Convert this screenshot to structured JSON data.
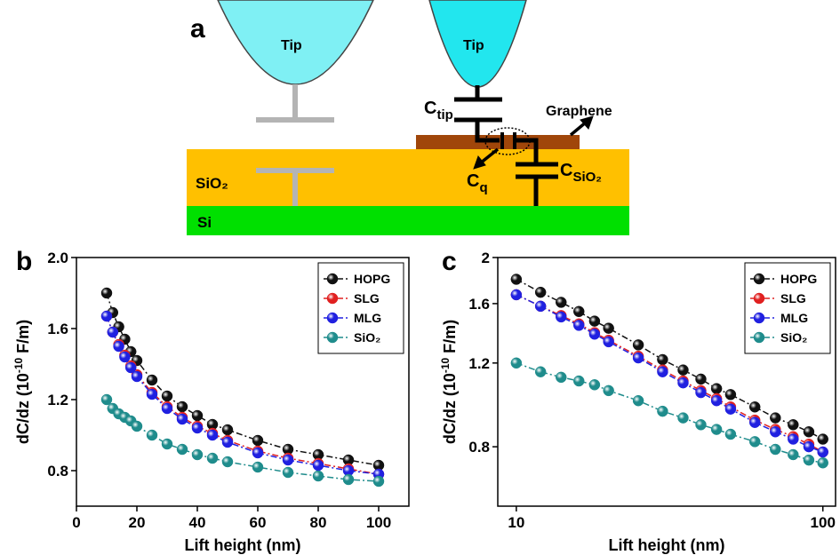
{
  "diagram": {
    "label": "a",
    "tip_left": "Tip",
    "tip_right": "Tip",
    "c_tip": {
      "main": "C",
      "sub": "tip"
    },
    "graphene": "Graphene",
    "c_q": {
      "main": "C",
      "sub": "q"
    },
    "c_sio2": {
      "main": "C",
      "sub": "SiO₂"
    },
    "sio2": "SiO₂",
    "si": "Si"
  },
  "chart_data": [
    {
      "type": "line",
      "label": "b",
      "xlabel": "Lift height (nm)",
      "ylabel": [
        "dC/dz (10",
        "-10",
        " F/m)"
      ],
      "x": [
        10,
        12,
        14,
        16,
        18,
        20,
        25,
        30,
        35,
        40,
        45,
        50,
        60,
        70,
        80,
        90,
        100
      ],
      "series": [
        {
          "name": "HOPG",
          "color": "#111111",
          "values": [
            1.8,
            1.69,
            1.61,
            1.54,
            1.47,
            1.42,
            1.31,
            1.22,
            1.16,
            1.11,
            1.06,
            1.03,
            0.97,
            0.92,
            0.89,
            0.86,
            0.83
          ]
        },
        {
          "name": "SLG",
          "color": "#e02020",
          "values": [
            1.67,
            1.58,
            1.51,
            1.45,
            1.39,
            1.34,
            1.24,
            1.16,
            1.1,
            1.05,
            1.01,
            0.97,
            0.91,
            0.87,
            0.84,
            0.81,
            0.78
          ]
        },
        {
          "name": "MLG",
          "color": "#2020e0",
          "values": [
            1.67,
            1.58,
            1.5,
            1.44,
            1.38,
            1.33,
            1.23,
            1.15,
            1.09,
            1.04,
            1.0,
            0.96,
            0.9,
            0.86,
            0.83,
            0.8,
            0.78
          ]
        },
        {
          "name": "SiO₂",
          "color": "#1f8c8c",
          "values": [
            1.2,
            1.15,
            1.12,
            1.1,
            1.08,
            1.05,
            1.0,
            0.95,
            0.92,
            0.89,
            0.87,
            0.85,
            0.82,
            0.79,
            0.77,
            0.75,
            0.74
          ]
        }
      ],
      "xlim": [
        0,
        110
      ],
      "ylim": [
        0.6,
        2.0
      ],
      "xscale": "linear",
      "yscale": "linear",
      "xticks": [
        0,
        20,
        40,
        60,
        80,
        100
      ],
      "yticks": [
        0.8,
        1.2,
        1.6,
        {
          "value": 2,
          "label": "2.0"
        }
      ],
      "legend": "upper right"
    },
    {
      "type": "line",
      "label": "c",
      "xlabel": "Lift height (nm)",
      "ylabel": [
        "dC/dz (10",
        "-10",
        " F/m)"
      ],
      "x": [
        10,
        12,
        14,
        16,
        18,
        20,
        25,
        30,
        35,
        40,
        45,
        50,
        60,
        70,
        80,
        90,
        100
      ],
      "series": [
        {
          "name": "HOPG",
          "color": "#111111",
          "values": [
            1.8,
            1.69,
            1.61,
            1.54,
            1.47,
            1.42,
            1.31,
            1.22,
            1.16,
            1.11,
            1.06,
            1.03,
            0.97,
            0.92,
            0.89,
            0.86,
            0.83
          ]
        },
        {
          "name": "SLG",
          "color": "#e02020",
          "values": [
            1.67,
            1.58,
            1.51,
            1.45,
            1.39,
            1.34,
            1.24,
            1.16,
            1.1,
            1.05,
            1.01,
            0.97,
            0.91,
            0.87,
            0.84,
            0.81,
            0.78
          ]
        },
        {
          "name": "MLG",
          "color": "#2020e0",
          "values": [
            1.67,
            1.58,
            1.5,
            1.44,
            1.38,
            1.33,
            1.23,
            1.15,
            1.09,
            1.04,
            1.0,
            0.96,
            0.9,
            0.86,
            0.83,
            0.8,
            0.78
          ]
        },
        {
          "name": "SiO₂",
          "color": "#1f8c8c",
          "values": [
            1.2,
            1.15,
            1.12,
            1.1,
            1.08,
            1.05,
            1.0,
            0.95,
            0.92,
            0.89,
            0.87,
            0.85,
            0.82,
            0.79,
            0.77,
            0.75,
            0.74
          ]
        }
      ],
      "xlim": [
        8.7,
        110
      ],
      "ylim": [
        0.6,
        2.0
      ],
      "xscale": "log",
      "yscale": "log",
      "xticks": [
        10,
        100
      ],
      "yticks": [
        0.8,
        1.2,
        1.6,
        2
      ],
      "legend": "upper right"
    }
  ]
}
